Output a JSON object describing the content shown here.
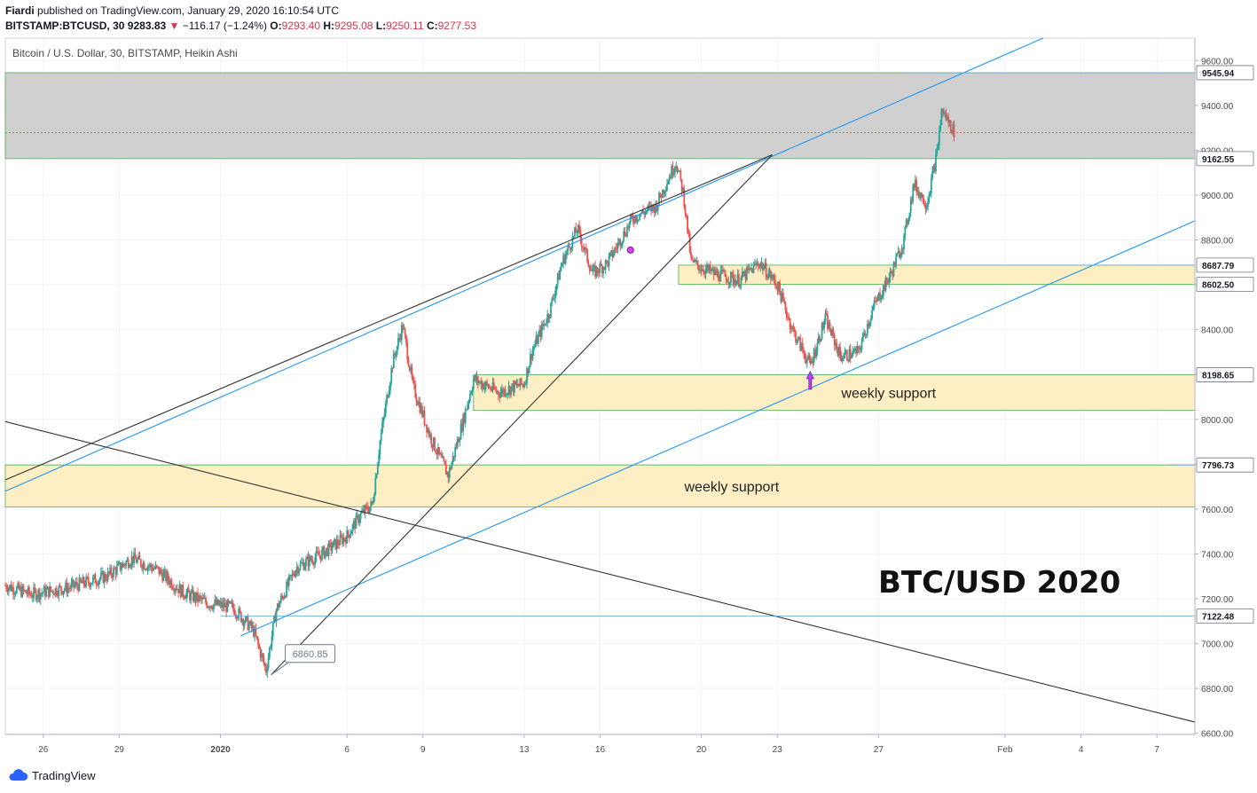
{
  "header": {
    "author": "Fiardi",
    "published_text": "published on TradingView.com, January 29, 2020 16:10:54 UTC",
    "symbol": "BITSTAMP:BTCUSD, 30",
    "last": "9283.83",
    "change_arrow": "▼",
    "change": "−116.17 (−1.24%)",
    "o_label": "O:",
    "o": "9293.40",
    "h_label": "H:",
    "h": "9295.08",
    "l_label": "L:",
    "l": "9250.11",
    "c_label": "C:",
    "c": "9277.53"
  },
  "footer": {
    "brand": "TradingView",
    "icon": "tradingview-cloud-icon"
  },
  "colors": {
    "up": "#26a69a",
    "down": "#ef5350",
    "resistance_zone": "#c8c8c8",
    "support_zone": "#fdeec4",
    "zone_border": "#4caf50",
    "trendline_blue": "#2196f3",
    "trendline_black": "#333333",
    "axis_text": "#4a4a4a"
  },
  "chart_data": {
    "type": "candlestick",
    "title": "Bitcoin / U.S. Dollar, 30, BITSTAMP, Heikin Ashi",
    "watermark": "BTC/USD 2020",
    "x_ticks": [
      "26",
      "29",
      "2020",
      "6",
      "9",
      "13",
      "16",
      "20",
      "23",
      "27",
      "Feb",
      "4",
      "7"
    ],
    "x_tick_days": [
      -6,
      -3,
      1,
      6,
      9,
      13,
      16,
      20,
      23,
      27,
      32,
      35,
      38
    ],
    "x_range_days": [
      -7.5,
      39.5
    ],
    "y_ticks": [
      "9600.00",
      "9400.00",
      "9200.00",
      "9000.00",
      "8800.00",
      "8600.00",
      "8400.00",
      "8200.00",
      "8000.00",
      "7800.00",
      "7600.00",
      "7400.00",
      "7200.00",
      "7000.00",
      "6800.00",
      "6600.00"
    ],
    "y_range": [
      6595,
      9700
    ],
    "price_tags": [
      "9545.94",
      "9162.55",
      "8687.79",
      "8602.50",
      "8198.65",
      "7796.73",
      "7122.48"
    ],
    "low_callout": "6860.85",
    "zones": [
      {
        "kind": "resistance",
        "from": 9162.55,
        "to": 9545.94
      },
      {
        "kind": "support",
        "from": 8602.5,
        "to": 8687.79
      },
      {
        "kind": "support",
        "from": 8040,
        "to": 8198.65,
        "label": "weekly support"
      },
      {
        "kind": "support",
        "from": 7610,
        "to": 7796.73,
        "label": "weekly support"
      }
    ],
    "trendlines": [
      {
        "color": "blue",
        "from": [
          -7.5,
          7680
        ],
        "to": [
          33.5,
          9700
        ]
      },
      {
        "color": "blue",
        "from": [
          1.8,
          7035
        ],
        "to": [
          39.5,
          8885
        ]
      },
      {
        "color": "black",
        "from": [
          -7.5,
          7730
        ],
        "to": [
          22.8,
          9180
        ]
      },
      {
        "color": "black",
        "from": [
          3,
          6860.85
        ],
        "to": [
          22.8,
          9180
        ]
      },
      {
        "color": "black",
        "from": [
          -7.5,
          7990
        ],
        "to": [
          39.5,
          6650
        ]
      }
    ],
    "series_anchors": [
      [
        -7.5,
        7260
      ],
      [
        -6.5,
        7220
      ],
      [
        -5,
        7250
      ],
      [
        -3.5,
        7300
      ],
      [
        -2.5,
        7380
      ],
      [
        -1.5,
        7330
      ],
      [
        -0.5,
        7230
      ],
      [
        0.5,
        7180
      ],
      [
        1.5,
        7160
      ],
      [
        2.3,
        7060
      ],
      [
        2.8,
        6880
      ],
      [
        3.2,
        7150
      ],
      [
        4,
        7340
      ],
      [
        5,
        7400
      ],
      [
        6,
        7480
      ],
      [
        6.5,
        7570
      ],
      [
        7,
        7620
      ],
      [
        7.3,
        7900
      ],
      [
        7.8,
        8250
      ],
      [
        8.2,
        8420
      ],
      [
        8.6,
        8150
      ],
      [
        9.3,
        7920
      ],
      [
        10,
        7750
      ],
      [
        10.6,
        8000
      ],
      [
        11,
        8180
      ],
      [
        12,
        8120
      ],
      [
        13,
        8160
      ],
      [
        13.3,
        8300
      ],
      [
        14,
        8480
      ],
      [
        14.5,
        8700
      ],
      [
        15.1,
        8850
      ],
      [
        15.7,
        8650
      ],
      [
        16.3,
        8700
      ],
      [
        17.3,
        8900
      ],
      [
        18.2,
        8950
      ],
      [
        19,
        9150
      ],
      [
        19.3,
        9000
      ],
      [
        19.6,
        8700
      ],
      [
        20.5,
        8650
      ],
      [
        21.5,
        8620
      ],
      [
        22.3,
        8700
      ],
      [
        23,
        8600
      ],
      [
        23.6,
        8400
      ],
      [
        24.3,
        8240
      ],
      [
        24.9,
        8450
      ],
      [
        25.5,
        8280
      ],
      [
        26.2,
        8300
      ],
      [
        26.8,
        8500
      ],
      [
        27.5,
        8650
      ],
      [
        28,
        8800
      ],
      [
        28.4,
        9050
      ],
      [
        28.9,
        8960
      ],
      [
        29.3,
        9180
      ],
      [
        29.5,
        9380
      ],
      [
        29.8,
        9320
      ],
      [
        30,
        9280
      ]
    ]
  }
}
